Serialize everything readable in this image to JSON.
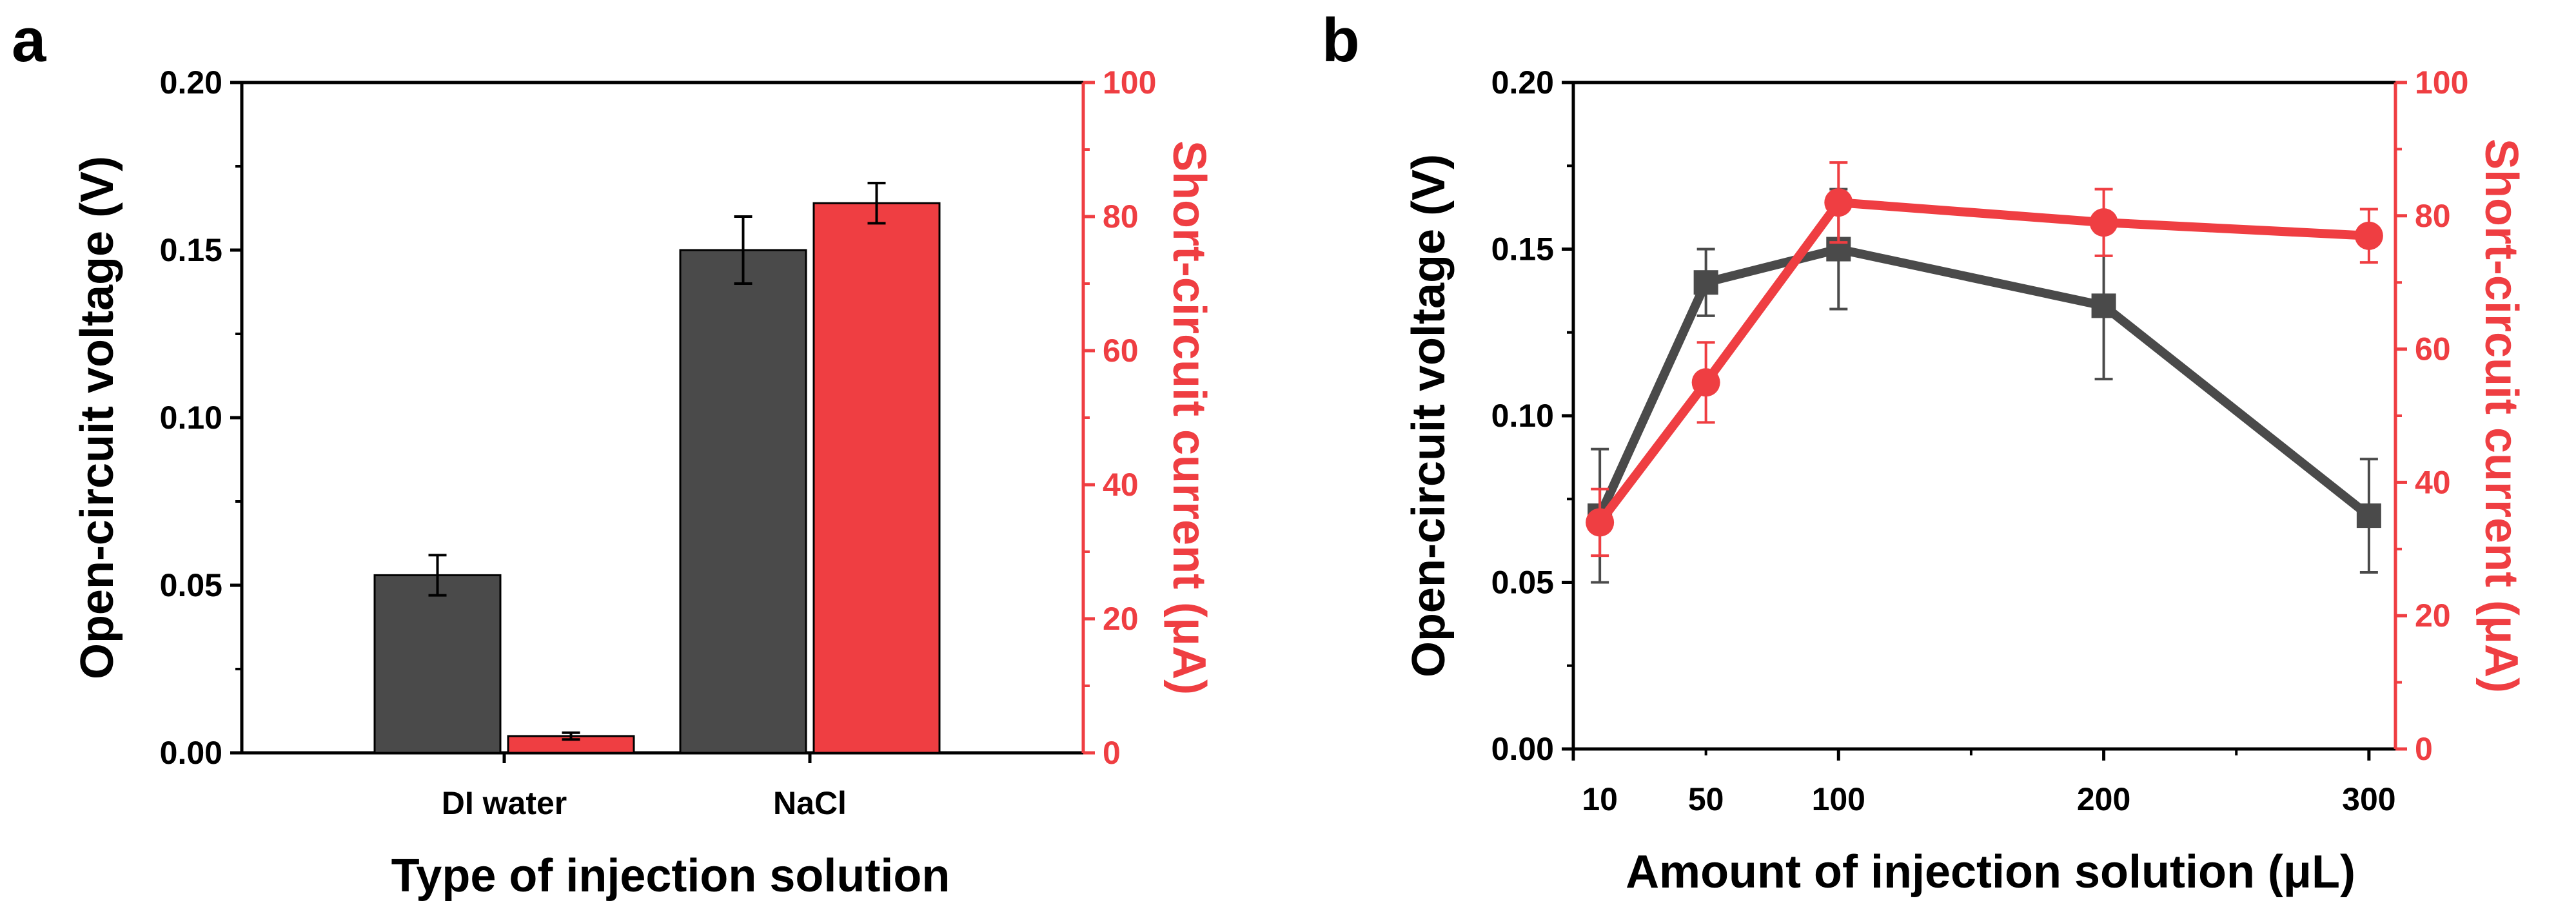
{
  "colors": {
    "dark": "#4a4a4a",
    "red": "#ef3e42",
    "axis": "#000000"
  },
  "chart_data": [
    {
      "panel": "a",
      "type": "bar",
      "categories": [
        "DI water",
        "NaCl"
      ],
      "xlabel": "Type of injection solution",
      "ylabel": "Open-circuit voltage (V)",
      "y2label": "Short-circuit current (μA)",
      "ylim": [
        0,
        0.2
      ],
      "y2lim": [
        0,
        100
      ],
      "yticks": [
        "0.00",
        "0.05",
        "0.10",
        "0.15",
        "0.20"
      ],
      "y2ticks": [
        "0",
        "20",
        "40",
        "60",
        "80",
        "100"
      ],
      "series": [
        {
          "axis": "left",
          "values": [
            0.053,
            0.15
          ],
          "errors": [
            0.006,
            0.01
          ]
        },
        {
          "axis": "right",
          "values": [
            2.5,
            82
          ],
          "errors": [
            0.5,
            3
          ]
        }
      ]
    },
    {
      "panel": "b",
      "type": "line",
      "xlabel": "Amount of injection solution (μL)",
      "ylabel": "Open-circuit voltage (V)",
      "y2label": "Short-circuit current (μA)",
      "xlim": [
        0,
        310
      ],
      "xticks": [
        "10",
        "50",
        "100",
        "200",
        "300"
      ],
      "ylim": [
        0,
        0.2
      ],
      "y2lim": [
        0,
        100
      ],
      "yticks": [
        "0.00",
        "0.05",
        "0.10",
        "0.15",
        "0.20"
      ],
      "y2ticks": [
        "0",
        "20",
        "40",
        "60",
        "80",
        "100"
      ],
      "series": [
        {
          "axis": "left",
          "marker": "square",
          "x": [
            10,
            50,
            100,
            200,
            300
          ],
          "values": [
            0.07,
            0.14,
            0.15,
            0.133,
            0.07
          ],
          "errors": [
            0.02,
            0.01,
            0.018,
            0.022,
            0.017
          ]
        },
        {
          "axis": "right",
          "marker": "circle",
          "x": [
            10,
            50,
            100,
            200,
            300
          ],
          "values": [
            34,
            55,
            82,
            79,
            77
          ],
          "errors": [
            5,
            6,
            6,
            5,
            4
          ]
        }
      ]
    }
  ]
}
